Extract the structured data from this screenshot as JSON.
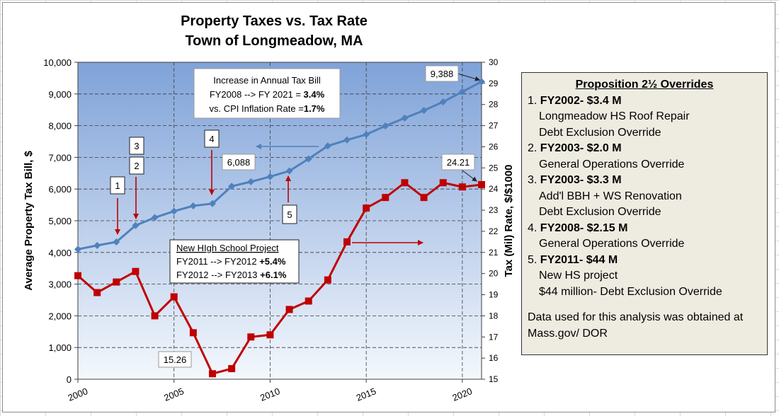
{
  "chart_data": {
    "type": "line",
    "title_line1": "Property Taxes vs. Tax Rate",
    "title_line2": "Town of Longmeadow, MA",
    "ylabel_left": "Average Property Tax Bill, $",
    "ylabel_right": "Tax (Mil) Rate, $/$1000",
    "xlim": [
      2000,
      2021
    ],
    "x_ticks": [
      2000,
      2005,
      2010,
      2015,
      2020
    ],
    "ylim_left": [
      0,
      10000
    ],
    "left_ticks": [
      0,
      1000,
      2000,
      3000,
      4000,
      5000,
      6000,
      7000,
      8000,
      9000,
      10000
    ],
    "left_tick_labels": [
      "0",
      "1,000",
      "2,000",
      "3,000",
      "4,000",
      "5,000",
      "6,000",
      "7,000",
      "8,000",
      "9,000",
      "10,000"
    ],
    "ylim_right": [
      15,
      30
    ],
    "right_ticks": [
      15,
      16,
      17,
      18,
      19,
      20,
      21,
      22,
      23,
      24,
      25,
      26,
      27,
      28,
      29,
      30
    ],
    "grid": true,
    "series": [
      {
        "name": "Average Property Tax Bill",
        "axis": "left",
        "color": "#4f81bd",
        "x": [
          2000,
          2001,
          2002,
          2003,
          2004,
          2005,
          2006,
          2007,
          2008,
          2009,
          2010,
          2011,
          2012,
          2013,
          2014,
          2015,
          2016,
          2017,
          2018,
          2019,
          2020,
          2021
        ],
        "values": [
          4100,
          4220,
          4330,
          4850,
          5100,
          5300,
          5470,
          5540,
          6088,
          6230,
          6390,
          6570,
          6950,
          7360,
          7550,
          7720,
          7990,
          8240,
          8480,
          8750,
          9070,
          9388
        ]
      },
      {
        "name": "Tax (Mil) Rate",
        "axis": "right",
        "color": "#c00000",
        "x": [
          2000,
          2001,
          2002,
          2003,
          2004,
          2005,
          2006,
          2007,
          2008,
          2009,
          2010,
          2011,
          2012,
          2013,
          2014,
          2015,
          2016,
          2017,
          2018,
          2019,
          2020,
          2021
        ],
        "values": [
          19.9,
          19.1,
          19.6,
          20.1,
          18.0,
          18.9,
          17.2,
          15.26,
          15.5,
          17.0,
          17.1,
          18.3,
          18.7,
          19.7,
          21.5,
          23.1,
          23.6,
          24.3,
          23.6,
          24.3,
          24.1,
          24.21
        ]
      }
    ],
    "data_labels": {
      "bill_2008": "6,088",
      "bill_2021": "9,388",
      "rate_2007": "15.26",
      "rate_2021": "24.21"
    },
    "markers": [
      "1",
      "2",
      "3",
      "4",
      "5"
    ],
    "increase_box": {
      "line1": "Increase in Annual Tax Bill",
      "line2": "FY2008 --> FY 2021 = ",
      "line2_value": "3.4%",
      "line3": "vs. CPI Inflation Rate =",
      "line3_value": "1.7%"
    },
    "school_box": {
      "title": "New HIgh School Project",
      "line1": "FY2011 --> FY2012 ",
      "line1_value": "+5.4%",
      "line2": "FY2012 --> FY2013 ",
      "line2_value": "+6.1%"
    }
  },
  "side_panel": {
    "title": "Proposition 2½ Overrides",
    "items": [
      {
        "num": "1.",
        "head": "FY2002- $3.4 M",
        "lines": [
          "Longmeadow HS Roof Repair",
          "Debt Exclusion Override"
        ]
      },
      {
        "num": "2.",
        "head": "FY2003- $2.0 M",
        "lines": [
          "General Operations Override"
        ]
      },
      {
        "num": "3.",
        "head": "FY2003- $3.3 M",
        "lines": [
          "Add'l BBH + WS Renovation",
          "Debt Exclusion Override"
        ]
      },
      {
        "num": "4.",
        "head": "FY2008- $2.15 M",
        "lines": [
          "General Operations Override"
        ]
      },
      {
        "num": "5.",
        "head": "FY2011- $44 M",
        "lines": [
          "New HS project",
          "$44 million- Debt Exclusion Override"
        ]
      }
    ],
    "footer_line1": "Data used for this analysis was obtained at",
    "footer_line2": "Mass.gov/ DOR"
  }
}
